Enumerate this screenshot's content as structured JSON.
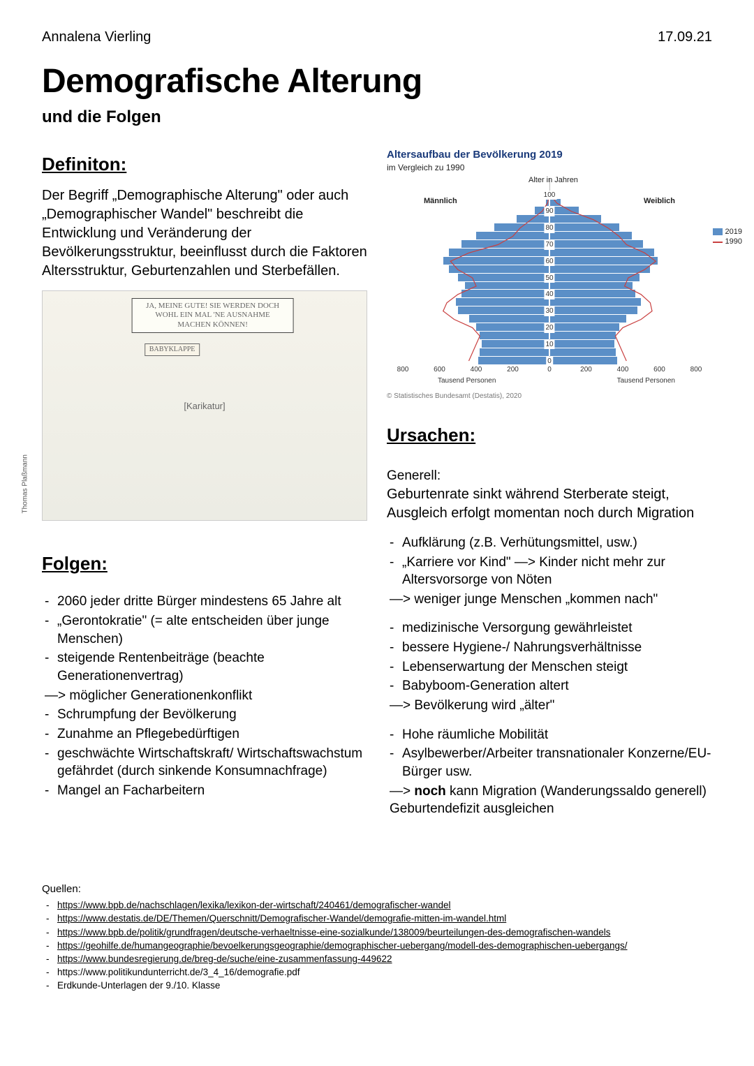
{
  "header": {
    "author": "Annalena Vierling",
    "date": "17.09.21"
  },
  "title": "Demografische Alterung",
  "subtitle": "und die Folgen",
  "definition": {
    "heading": "Definiton:",
    "text": "Der Begriff „Demographische Alterung\" oder auch „Demographischer Wandel\" beschreibt die Entwicklung und Veränderung der Bevölkerungsstruktur, beeinflusst durch die Faktoren Altersstruktur, Geburtenzahlen und Sterbefällen."
  },
  "cartoon": {
    "speech": "JA, MEINE GUTE! SIE WERDEN DOCH WOHL EIN MAL 'NE AUSNAHME MACHEN KÖNNEN!",
    "sign": "BABYKLAPPE",
    "credit": "Thomas Plaßmann"
  },
  "folgen": {
    "heading": "Folgen:",
    "items": [
      {
        "t": "li",
        "v": "2060 jeder dritte Bürger mindestens 65 Jahre alt"
      },
      {
        "t": "li",
        "v": "„Gerontokratie\" (= alte entscheiden über junge Menschen)"
      },
      {
        "t": "li",
        "v": "steigende Rentenbeiträge (beachte Generationenvertrag)"
      },
      {
        "t": "ar",
        "v": "—> möglicher Generationenkonflikt"
      },
      {
        "t": "li",
        "v": "Schrumpfung der Bevölkerung"
      },
      {
        "t": "li",
        "v": "Zunahme an Pflegebedürftigen"
      },
      {
        "t": "li",
        "v": "geschwächte Wirtschaftskraft/ Wirtschaftswachstum gefährdet (durch sinkende Konsumnachfrage)"
      },
      {
        "t": "li",
        "v": "Mangel an Facharbeitern"
      }
    ]
  },
  "chart": {
    "title": "Altersaufbau der Bevölkerung 2019",
    "subtitle": "im Vergleich zu 1990",
    "top_label": "Alter in Jahren",
    "left_label": "Männlich",
    "right_label": "Weiblich",
    "x_label": "Tausend Personen",
    "credit": "© Statistisches Bundesamt (Destatis), 2020",
    "legend": [
      {
        "label": "2019",
        "color": "#5b8fc7",
        "type": "fill"
      },
      {
        "label": "1990",
        "color": "#c94040",
        "type": "line"
      }
    ],
    "colors": {
      "bar": "#5b8fc7",
      "line_1990": "#c94040",
      "grid": "#dddddd",
      "text": "#222222",
      "bg": "#ffffff"
    },
    "y_ticks": [
      0,
      10,
      20,
      30,
      40,
      50,
      60,
      70,
      80,
      90,
      100
    ],
    "x_ticks": [
      800,
      600,
      400,
      200,
      0,
      200,
      400,
      600,
      800
    ],
    "x_max": 800,
    "male_2019": [
      390,
      380,
      370,
      380,
      400,
      440,
      500,
      510,
      480,
      460,
      500,
      550,
      580,
      550,
      480,
      400,
      300,
      180,
      80,
      20,
      2
    ],
    "female_2019": [
      370,
      360,
      355,
      360,
      380,
      420,
      480,
      500,
      470,
      455,
      490,
      550,
      590,
      570,
      510,
      450,
      380,
      280,
      160,
      60,
      10
    ],
    "male_1990": [
      440,
      420,
      400,
      380,
      420,
      520,
      580,
      560,
      500,
      400,
      420,
      500,
      540,
      440,
      280,
      200,
      160,
      100,
      40,
      10,
      1
    ],
    "female_1990": [
      420,
      400,
      380,
      360,
      400,
      500,
      560,
      550,
      500,
      410,
      430,
      520,
      580,
      520,
      420,
      380,
      320,
      240,
      120,
      40,
      5
    ]
  },
  "ursachen": {
    "heading": "Ursachen:",
    "intro_label": "Generell:",
    "intro_text": "Geburtenrate sinkt während Sterberate steigt, Ausgleich erfolgt momentan noch durch Migration",
    "group1": [
      {
        "t": "li",
        "v": "Aufklärung (z.B. Verhütungsmittel, usw.)"
      },
      {
        "t": "li",
        "v": "„Karriere vor Kind\" —> Kinder nicht mehr zur Altersvorsorge von Nöten"
      },
      {
        "t": "ar",
        "v": "—> weniger junge Menschen „kommen nach\""
      }
    ],
    "group2": [
      {
        "t": "li",
        "v": "medizinische Versorgung gewährleistet"
      },
      {
        "t": "li",
        "v": "bessere Hygiene-/ Nahrungsverhältnisse"
      },
      {
        "t": "li",
        "v": "Lebenserwartung der Menschen steigt"
      },
      {
        "t": "li",
        "v": "Babyboom-Generation altert"
      },
      {
        "t": "ar",
        "v": "—> Bevölkerung wird „älter\""
      }
    ],
    "group3": [
      {
        "t": "li",
        "v": "Hohe räumliche Mobilität"
      },
      {
        "t": "li",
        "v": "Asylbewerber/Arbeiter transnationaler Konzerne/EU-Bürger usw."
      }
    ],
    "group3_tail_pre": " —> ",
    "group3_tail_bold": "noch",
    "group3_tail_post": " kann Migration (Wanderungssaldo generell) Geburtendefizit ausgleichen"
  },
  "sources": {
    "heading": "Quellen:",
    "items": [
      {
        "text": "https://www.bpb.de/nachschlagen/lexika/lexikon-der-wirtschaft/240461/demografischer-wandel",
        "link": true
      },
      {
        "text": "https://www.destatis.de/DE/Themen/Querschnitt/Demografischer-Wandel/demografie-mitten-im-wandel.html",
        "link": true
      },
      {
        "text": "https://www.bpb.de/politik/grundfragen/deutsche-verhaeltnisse-eine-sozialkunde/138009/beurteilungen-des-demografischen-wandels",
        "link": true
      },
      {
        "text": "https://geohilfe.de/humangeographie/bevoelkerungsgeographie/demographischer-uebergang/modell-des-demographischen-uebergangs/",
        "link": true
      },
      {
        "text": "https://www.bundesregierung.de/breg-de/suche/eine-zusammenfassung-449622",
        "link": true
      },
      {
        "text": "https://www.politikundunterricht.de/3_4_16/demografie.pdf",
        "link": false
      },
      {
        "text": "Erdkunde-Unterlagen der 9./10. Klasse",
        "link": false
      }
    ]
  }
}
